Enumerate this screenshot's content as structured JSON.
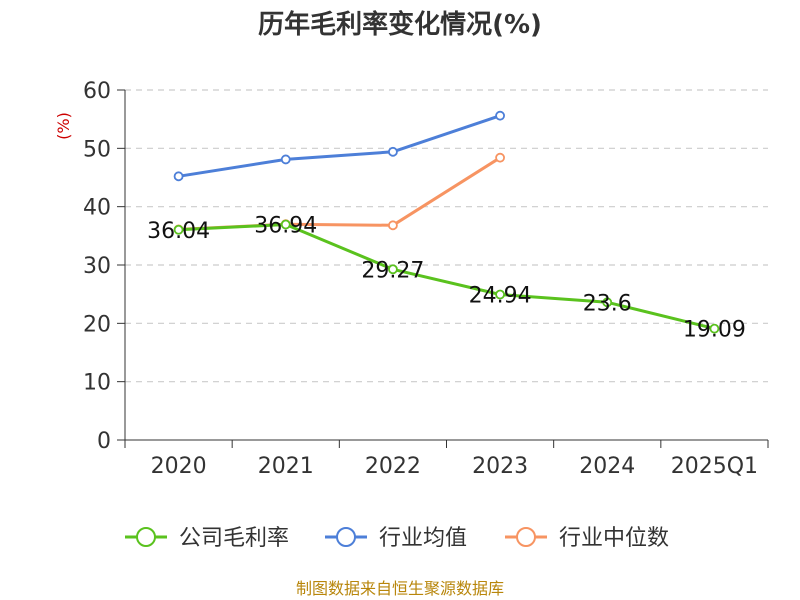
{
  "chart_data": {
    "type": "line",
    "title": "历年毛利率变化情况(%)",
    "ylabel": "(%)",
    "xlabel": "",
    "categories": [
      "2020",
      "2021",
      "2022",
      "2023",
      "2024",
      "2025Q1"
    ],
    "ylim": [
      0,
      60
    ],
    "yticks": [
      0,
      10,
      20,
      30,
      40,
      50,
      60
    ],
    "grid": true,
    "legend_position": "bottom",
    "series": [
      {
        "name": "公司毛利率",
        "color": "#5ac21e",
        "values": [
          36.04,
          36.94,
          29.27,
          24.94,
          23.6,
          19.09
        ],
        "labels": [
          "36.04",
          "36.94",
          "29.27",
          "24.94",
          "23.6",
          "19.09"
        ]
      },
      {
        "name": "行业均值",
        "color": "#4d7fd8",
        "values": [
          45.2,
          48.1,
          49.4,
          55.6,
          null,
          null
        ]
      },
      {
        "name": "行业中位数",
        "color": "#f79462",
        "values": [
          36.1,
          37.0,
          36.8,
          48.4,
          null,
          null
        ]
      }
    ],
    "source": "制图数据来自恒生聚源数据库"
  }
}
